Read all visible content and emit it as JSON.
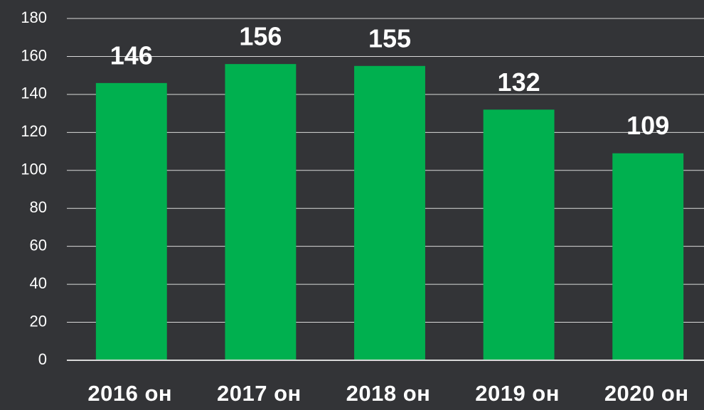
{
  "chart_data": {
    "type": "bar",
    "categories": [
      "2016 он",
      "2017 он",
      "2018 он",
      "2019 он",
      "2020 он"
    ],
    "values": [
      146,
      156,
      155,
      132,
      109
    ],
    "color": "#00b04f",
    "ylim": [
      0,
      180
    ],
    "yticks": [
      0,
      20,
      40,
      60,
      80,
      100,
      120,
      140,
      160,
      180
    ],
    "grid": true
  }
}
